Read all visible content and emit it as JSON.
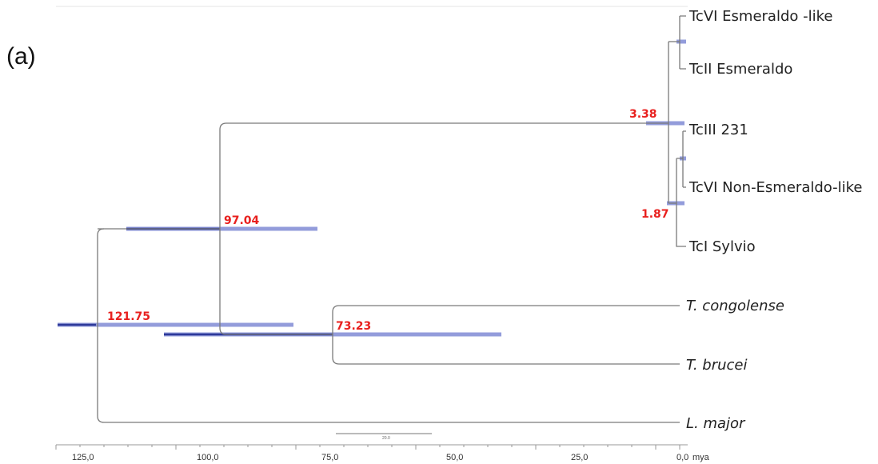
{
  "panel_label": "(a)",
  "axis": {
    "unit": "mya",
    "ticks": [
      "125,0",
      "100,0",
      "75,0",
      "50,0",
      "25,0",
      "0,0"
    ],
    "scale_bar_label": "20.0"
  },
  "taxa": [
    {
      "name": "TcVI Esmeraldo -like",
      "italic": false
    },
    {
      "name": "TcII Esmeraldo",
      "italic": false
    },
    {
      "name": "TcIII 231",
      "italic": false
    },
    {
      "name": "TcVI Non-Esmeraldo-like",
      "italic": false
    },
    {
      "name": "TcI Sylvio",
      "italic": false
    },
    {
      "name": "T. congolense",
      "italic": true
    },
    {
      "name": "T. brucei",
      "italic": true
    },
    {
      "name": "L. major",
      "italic": true
    }
  ],
  "node_ages": [
    "121.75",
    "97.04",
    "73.23",
    "3.38",
    "1.87"
  ],
  "colors": {
    "node_label": "#e8201e",
    "ci_bar": "#6f7bd0",
    "branch": "#7a7a7a"
  }
}
